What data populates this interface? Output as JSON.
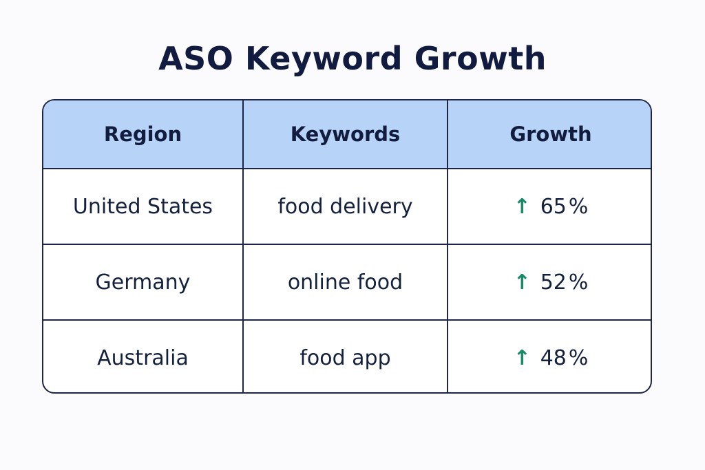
{
  "title": "ASO Keyword Growth",
  "colors": {
    "header_bg": "#b7d3f8",
    "border": "#1d2647",
    "growth_arrow": "#1a8a63",
    "text": "#14213d"
  },
  "chart_data": {
    "type": "table",
    "title": "ASO Keyword Growth",
    "columns": [
      "Region",
      "Keywords",
      "Growth"
    ],
    "rows": [
      {
        "region": "United States",
        "keyword": "food delivery",
        "growth_value": "65",
        "growth_unit": "%",
        "growth_icon": "arrow-up-icon"
      },
      {
        "region": "Germany",
        "keyword": "online food",
        "growth_value": "52",
        "growth_unit": "%",
        "growth_icon": "arrow-up-icon"
      },
      {
        "region": "Australia",
        "keyword": "food app",
        "growth_value": "48",
        "growth_unit": "%",
        "growth_icon": "arrow-up-icon"
      }
    ]
  }
}
